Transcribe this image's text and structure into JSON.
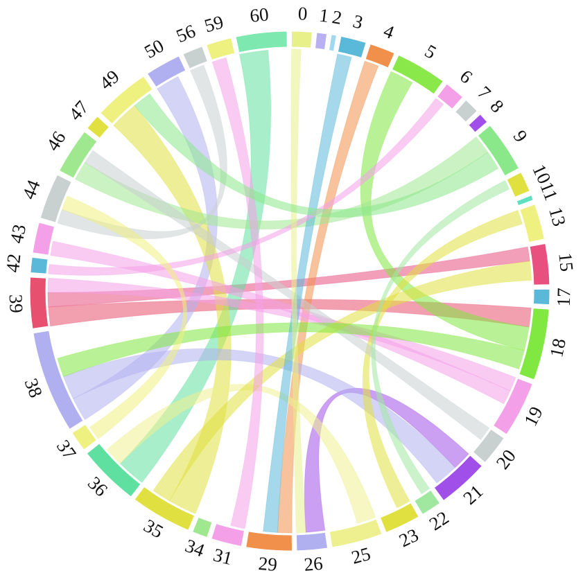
{
  "chart_data": {
    "type": "chord",
    "groups": [
      {
        "name": "60",
        "value": 10,
        "color": "#7de8b0"
      },
      {
        "name": "0",
        "value": 4,
        "color": "#e8f08a"
      },
      {
        "name": "1",
        "value": 2,
        "color": "#b8b0f0"
      },
      {
        "name": "2",
        "value": 1,
        "color": "#a0d8f0"
      },
      {
        "name": "3",
        "value": 5,
        "color": "#5ab8d8"
      },
      {
        "name": "4",
        "value": 5,
        "color": "#f0904a"
      },
      {
        "name": "5",
        "value": 10,
        "color": "#8ae84a"
      },
      {
        "name": "6",
        "value": 4,
        "color": "#f4a0e8"
      },
      {
        "name": "7",
        "value": 3,
        "color": "#c8d0d0"
      },
      {
        "name": "8",
        "value": 2,
        "color": "#a050e8"
      },
      {
        "name": "9",
        "value": 10,
        "color": "#8ae88a"
      },
      {
        "name": "10",
        "value": 4,
        "color": "#e0e040"
      },
      {
        "name": "11",
        "value": 1,
        "color": "#60e0c0"
      },
      {
        "name": "13",
        "value": 7,
        "color": "#eef080"
      },
      {
        "name": "15",
        "value": 8,
        "color": "#e85080"
      },
      {
        "name": "17",
        "value": 3,
        "color": "#5ab8d8"
      },
      {
        "name": "18",
        "value": 14,
        "color": "#80e840"
      },
      {
        "name": "19",
        "value": 11,
        "color": "#f4a0e8"
      },
      {
        "name": "20",
        "value": 6,
        "color": "#c8d0d0"
      },
      {
        "name": "21",
        "value": 10,
        "color": "#a050e8"
      },
      {
        "name": "22",
        "value": 4,
        "color": "#a0e8a0"
      },
      {
        "name": "23",
        "value": 7,
        "color": "#e0e040"
      },
      {
        "name": "25",
        "value": 10,
        "color": "#eef090"
      },
      {
        "name": "26",
        "value": 6,
        "color": "#b0b0f0"
      },
      {
        "name": "29",
        "value": 9,
        "color": "#f0904a"
      },
      {
        "name": "31",
        "value": 6,
        "color": "#f4a0e8"
      },
      {
        "name": "34",
        "value": 3,
        "color": "#a0e890"
      },
      {
        "name": "35",
        "value": 12,
        "color": "#e0e040"
      },
      {
        "name": "36",
        "value": 12,
        "color": "#60e0a0"
      },
      {
        "name": "37",
        "value": 4,
        "color": "#eef080"
      },
      {
        "name": "38",
        "value": 20,
        "color": "#b0b0f0"
      },
      {
        "name": "39",
        "value": 10,
        "color": "#e85070"
      },
      {
        "name": "42",
        "value": 3,
        "color": "#5ab8d8"
      },
      {
        "name": "43",
        "value": 6,
        "color": "#f4a0e8"
      },
      {
        "name": "44",
        "value": 9,
        "color": "#c8d0d0"
      },
      {
        "name": "46",
        "value": 9,
        "color": "#a0e890"
      },
      {
        "name": "47",
        "value": 3,
        "color": "#e0e040"
      },
      {
        "name": "49",
        "value": 11,
        "color": "#eef080"
      },
      {
        "name": "50",
        "value": 7,
        "color": "#b0b0f0"
      },
      {
        "name": "56",
        "value": 4,
        "color": "#c8d0d0"
      },
      {
        "name": "59",
        "value": 5,
        "color": "#eef080"
      }
    ],
    "chords": [
      {
        "source": "39",
        "target": "18",
        "value": 4
      },
      {
        "source": "15",
        "target": "39",
        "value": 3
      },
      {
        "source": "38",
        "target": "50",
        "value": 5
      },
      {
        "source": "36",
        "target": "60",
        "value": 6
      },
      {
        "source": "18",
        "target": "5",
        "value": 5
      },
      {
        "source": "21",
        "target": "26",
        "value": 4
      },
      {
        "source": "29",
        "target": "4",
        "value": 3
      },
      {
        "source": "35",
        "target": "49",
        "value": 6
      },
      {
        "source": "44",
        "target": "56",
        "value": 3
      },
      {
        "source": "19",
        "target": "39",
        "value": 3
      },
      {
        "source": "46",
        "target": "9",
        "value": 4
      },
      {
        "source": "43",
        "target": "19",
        "value": 3
      },
      {
        "source": "38",
        "target": "21",
        "value": 5
      },
      {
        "source": "25",
        "target": "36",
        "value": 4
      },
      {
        "source": "23",
        "target": "13",
        "value": 3
      },
      {
        "source": "20",
        "target": "46",
        "value": 3
      },
      {
        "source": "35",
        "target": "15",
        "value": 4
      },
      {
        "source": "31",
        "target": "59",
        "value": 3
      },
      {
        "source": "18",
        "target": "38",
        "value": 4
      },
      {
        "source": "3",
        "target": "29",
        "value": 3
      },
      {
        "source": "6",
        "target": "42",
        "value": 2
      },
      {
        "source": "0",
        "target": "26",
        "value": 2
      },
      {
        "source": "9",
        "target": "49",
        "value": 4
      },
      {
        "source": "22",
        "target": "10",
        "value": 2
      },
      {
        "source": "37",
        "target": "44",
        "value": 3
      }
    ]
  }
}
